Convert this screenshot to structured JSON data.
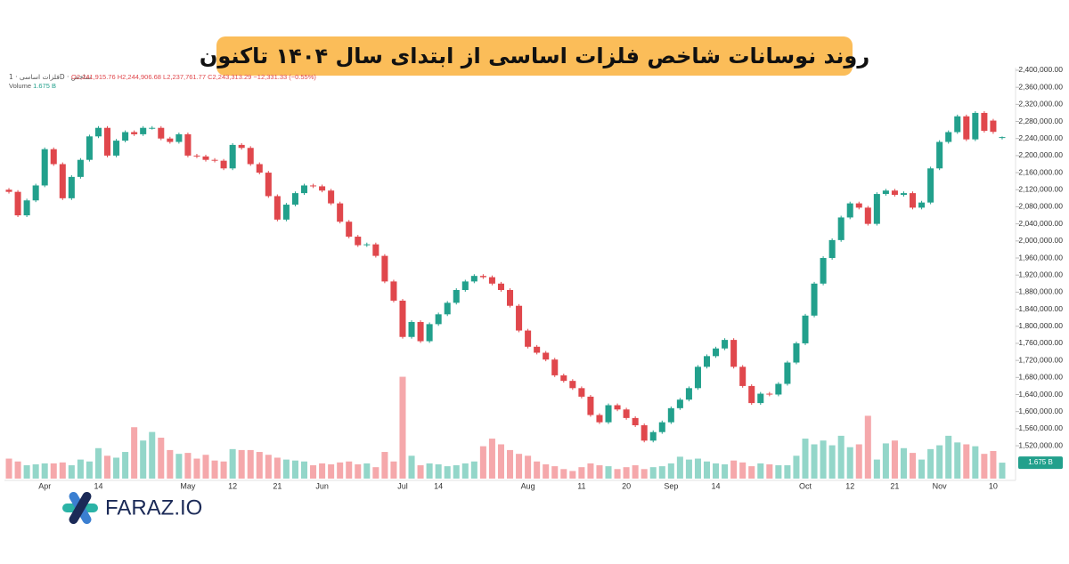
{
  "title": "روند نوسانات شاخص فلزات اساسی از ابتدای سال ۱۴۰۴ تاکنون",
  "logo": "FARAZ.IO",
  "chart_data": {
    "type": "candlestick",
    "instrument": "فلزات اساسی · 1D · شاخص",
    "legend_values": [
      "O2,241,915.76",
      "H2,244,906.68",
      "L2,237,761.77",
      "C2,243,313.29",
      "−12,331.33 (−0.55%)"
    ],
    "volume_name": "Volume",
    "volume_label": "1.675 B",
    "up_color": "#22a08c",
    "down_color": "#e0474c",
    "volume_up_color": "#93d6c9",
    "volume_down_color": "#f5a8ab",
    "categories": [
      null,
      null,
      null,
      null,
      "Apr",
      null,
      null,
      null,
      null,
      null,
      "14",
      null,
      null,
      null,
      null,
      null,
      null,
      null,
      null,
      null,
      "May",
      null,
      null,
      null,
      null,
      "12",
      null,
      null,
      null,
      null,
      "21",
      null,
      null,
      null,
      null,
      "Jun",
      null,
      null,
      null,
      null,
      null,
      null,
      null,
      null,
      "Jul",
      null,
      null,
      null,
      "14",
      null,
      null,
      null,
      null,
      null,
      null,
      null,
      null,
      null,
      "Aug",
      null,
      null,
      null,
      null,
      null,
      "11",
      null,
      null,
      null,
      null,
      "20",
      null,
      null,
      null,
      null,
      "Sep",
      null,
      null,
      null,
      null,
      "14",
      null,
      null,
      null,
      null,
      null,
      null,
      null,
      null,
      null,
      "Oct",
      null,
      null,
      null,
      null,
      "12",
      null,
      null,
      null,
      null,
      "21",
      null,
      null,
      null,
      null,
      "Nov",
      null,
      null,
      null,
      null,
      null,
      "10",
      null
    ],
    "open": [
      2120000,
      2115000,
      2060000,
      2095000,
      2130000,
      2215000,
      2180000,
      2100000,
      2150000,
      2190000,
      2245000,
      2265000,
      2200000,
      2235000,
      2255000,
      2250000,
      2265000,
      2265000,
      2240000,
      2232000,
      2250000,
      2200000,
      2198000,
      2190000,
      2188000,
      2170000,
      2225000,
      2218000,
      2180000,
      2160000,
      2105000,
      2050000,
      2085000,
      2112000,
      2130000,
      2128000,
      2118000,
      2088000,
      2045000,
      2010000,
      1990000,
      1992000,
      1965000,
      1905000,
      1860000,
      1775000,
      1810000,
      1765000,
      1805000,
      1828000,
      1855000,
      1885000,
      1905000,
      1918000,
      1915000,
      1900000,
      1885000,
      1848000,
      1790000,
      1752000,
      1738000,
      1722000,
      1685000,
      1672000,
      1655000,
      1635000,
      1592000,
      1575000,
      1615000,
      1605000,
      1585000,
      1568000,
      1532000,
      1552000,
      1575000,
      1608000,
      1628000,
      1655000,
      1705000,
      1730000,
      1748000,
      1768000,
      1705000,
      1660000,
      1620000,
      1642000,
      1640000,
      1665000,
      1715000,
      1760000,
      1825000,
      1900000,
      1960000,
      2002000,
      2055000,
      2088000,
      2078000,
      2040000,
      2110000,
      2118000,
      2108000,
      2112000,
      2078000,
      2090000,
      2170000,
      2232000,
      2255000,
      2292000,
      2238000,
      2300000,
      2282000,
      2241915.76
    ],
    "high": [
      2124000,
      2119000,
      2099000,
      2134000,
      2219000,
      2219000,
      2184000,
      2154000,
      2194000,
      2249000,
      2269000,
      2269000,
      2239000,
      2259000,
      2259000,
      2269000,
      2269000,
      2269000,
      2244000,
      2254000,
      2254000,
      2204000,
      2202000,
      2194000,
      2192000,
      2229000,
      2229000,
      2222000,
      2184000,
      2164000,
      2109000,
      2089000,
      2116000,
      2134000,
      2134000,
      2132000,
      2122000,
      2092000,
      2049000,
      2014000,
      1996000,
      1996000,
      1969000,
      1909000,
      1864000,
      1814000,
      1814000,
      1809000,
      1832000,
      1859000,
      1889000,
      1909000,
      1922000,
      1922000,
      1919000,
      1904000,
      1889000,
      1852000,
      1794000,
      1756000,
      1742000,
      1726000,
      1689000,
      1676000,
      1659000,
      1639000,
      1596000,
      1619000,
      1619000,
      1609000,
      1589000,
      1572000,
      1556000,
      1579000,
      1612000,
      1632000,
      1659000,
      1709000,
      1734000,
      1752000,
      1772000,
      1772000,
      1709000,
      1664000,
      1646000,
      1646000,
      1669000,
      1719000,
      1764000,
      1829000,
      1904000,
      1964000,
      2006000,
      2059000,
      2092000,
      2092000,
      2082000,
      2114000,
      2122000,
      2122000,
      2116000,
      2116000,
      2094000,
      2174000,
      2236000,
      2259000,
      2296000,
      2296000,
      2304000,
      2304000,
      2286000,
      2244906.68
    ],
    "low": [
      2111000,
      2056000,
      2056000,
      2091000,
      2126000,
      2176000,
      2096000,
      2096000,
      2146000,
      2186000,
      2241000,
      2196000,
      2196000,
      2231000,
      2246000,
      2246000,
      2261000,
      2236000,
      2228000,
      2228000,
      2196000,
      2194000,
      2186000,
      2184000,
      2166000,
      2166000,
      2214000,
      2176000,
      2156000,
      2101000,
      2046000,
      2046000,
      2081000,
      2108000,
      2124000,
      2114000,
      2084000,
      2041000,
      2006000,
      1986000,
      1986000,
      1961000,
      1901000,
      1856000,
      1771000,
      1771000,
      1761000,
      1761000,
      1801000,
      1824000,
      1851000,
      1881000,
      1901000,
      1911000,
      1896000,
      1881000,
      1844000,
      1786000,
      1748000,
      1734000,
      1718000,
      1681000,
      1668000,
      1651000,
      1631000,
      1588000,
      1571000,
      1571000,
      1601000,
      1581000,
      1564000,
      1528000,
      1528000,
      1548000,
      1571000,
      1604000,
      1624000,
      1651000,
      1701000,
      1726000,
      1744000,
      1701000,
      1656000,
      1616000,
      1616000,
      1636000,
      1636000,
      1661000,
      1711000,
      1756000,
      1821000,
      1896000,
      1956000,
      1998000,
      2051000,
      2074000,
      2036000,
      2036000,
      2106000,
      2104000,
      2104000,
      2074000,
      2074000,
      2086000,
      2166000,
      2228000,
      2251000,
      2234000,
      2234000,
      2254000,
      2251000,
      2237761.77
    ],
    "close": [
      2115000,
      2060000,
      2095000,
      2130000,
      2215000,
      2180000,
      2100000,
      2150000,
      2190000,
      2245000,
      2265000,
      2200000,
      2235000,
      2255000,
      2250000,
      2265000,
      2265000,
      2240000,
      2232000,
      2250000,
      2200000,
      2198000,
      2190000,
      2188000,
      2170000,
      2225000,
      2218000,
      2180000,
      2160000,
      2105000,
      2050000,
      2085000,
      2112000,
      2130000,
      2128000,
      2118000,
      2088000,
      2045000,
      2010000,
      1990000,
      1992000,
      1965000,
      1905000,
      1860000,
      1775000,
      1810000,
      1765000,
      1805000,
      1828000,
      1855000,
      1885000,
      1905000,
      1918000,
      1915000,
      1900000,
      1885000,
      1848000,
      1790000,
      1752000,
      1738000,
      1722000,
      1685000,
      1672000,
      1655000,
      1635000,
      1592000,
      1575000,
      1615000,
      1605000,
      1585000,
      1568000,
      1532000,
      1552000,
      1575000,
      1608000,
      1628000,
      1655000,
      1705000,
      1730000,
      1748000,
      1768000,
      1705000,
      1660000,
      1620000,
      1642000,
      1640000,
      1665000,
      1715000,
      1760000,
      1825000,
      1900000,
      1960000,
      2002000,
      2055000,
      2088000,
      2078000,
      2040000,
      2110000,
      2118000,
      2108000,
      2112000,
      2078000,
      2090000,
      2170000,
      2232000,
      2255000,
      2292000,
      2238000,
      2300000,
      2258000,
      2255644.62,
      2243313.29
    ],
    "volume": [
      2.1,
      1.8,
      1.4,
      1.5,
      1.6,
      1.6,
      1.7,
      1.4,
      2.0,
      1.8,
      3.2,
      2.4,
      2.2,
      2.8,
      5.4,
      4.0,
      4.9,
      4.3,
      3.0,
      2.6,
      2.7,
      2.1,
      2.5,
      1.9,
      1.8,
      3.1,
      3.0,
      3.0,
      2.8,
      2.5,
      2.2,
      2.0,
      1.9,
      1.8,
      1.4,
      1.6,
      1.5,
      1.7,
      1.8,
      1.5,
      1.6,
      1.2,
      2.8,
      1.8,
      10.7,
      2.4,
      1.4,
      1.6,
      1.5,
      1.3,
      1.4,
      1.6,
      1.8,
      3.4,
      4.2,
      3.6,
      3.0,
      2.6,
      2.4,
      1.8,
      1.5,
      1.3,
      1.0,
      0.8,
      1.2,
      1.6,
      1.4,
      1.3,
      1.0,
      1.2,
      1.4,
      1.0,
      1.2,
      1.3,
      1.6,
      2.3,
      2.0,
      2.1,
      1.8,
      1.6,
      1.5,
      1.9,
      1.7,
      1.3,
      1.6,
      1.5,
      1.4,
      1.4,
      2.4,
      4.2,
      3.6,
      4.0,
      3.5,
      4.5,
      3.3,
      3.6,
      6.6,
      2.0,
      3.7,
      4.0,
      3.2,
      2.7,
      2.0,
      3.1,
      3.5,
      4.5,
      3.8,
      3.6,
      3.4,
      2.6,
      2.9,
      1.675
    ],
    "volume_ylim": [
      0,
      43
    ],
    "ylim": [
      1443000,
      2402000
    ],
    "yticks": [
      {
        "value": 1520000,
        "label": "1,520,000.00"
      },
      {
        "value": 1560000,
        "label": "1,560,000.00"
      },
      {
        "value": 1600000,
        "label": "1,600,000.00"
      },
      {
        "value": 1640000,
        "label": "1,640,000.00"
      },
      {
        "value": 1680000,
        "label": "1,680,000.00"
      },
      {
        "value": 1720000,
        "label": "1,720,000.00"
      },
      {
        "value": 1760000,
        "label": "1,760,000.00"
      },
      {
        "value": 1800000,
        "label": "1,800,000.00"
      },
      {
        "value": 1840000,
        "label": "1,840,000.00"
      },
      {
        "value": 1880000,
        "label": "1,880,000.00"
      },
      {
        "value": 1920000,
        "label": "1,920,000.00"
      },
      {
        "value": 1960000,
        "label": "1,960,000.00"
      },
      {
        "value": 2000000,
        "label": "2,000,000.00"
      },
      {
        "value": 2040000,
        "label": "2,040,000.00"
      },
      {
        "value": 2080000,
        "label": "2,080,000.00"
      },
      {
        "value": 2120000,
        "label": "2,120,000.00"
      },
      {
        "value": 2160000,
        "label": "2,160,000.00"
      },
      {
        "value": 2200000,
        "label": "2,200,000.00"
      },
      {
        "value": 2240000,
        "label": "2,240,000.00"
      },
      {
        "value": 2280000,
        "label": "2,280,000.00"
      },
      {
        "value": 2320000,
        "label": "2,320,000.00"
      },
      {
        "value": 2360000,
        "label": "2,360,000.00"
      },
      {
        "value": 2400000,
        "label": "2,400,000.00"
      }
    ],
    "grid": false
  }
}
